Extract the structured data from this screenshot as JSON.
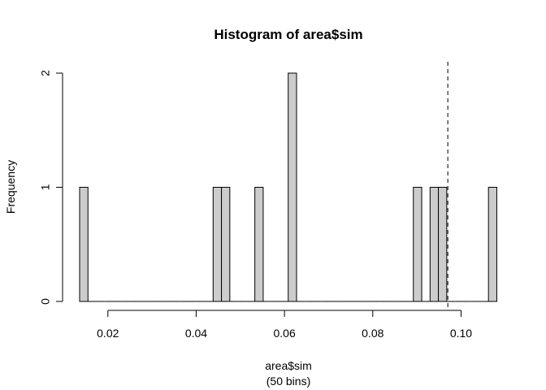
{
  "chart_data": {
    "type": "bar",
    "title": "Histogram of area$sim",
    "xlabel": "area$sim",
    "xlabel_sub": "(50 bins)",
    "ylabel": "Frequency",
    "xlim": [
      0.0136,
      0.1082
    ],
    "ylim": [
      0,
      2
    ],
    "x_ticks": [
      0.02,
      0.04,
      0.06,
      0.08,
      0.1
    ],
    "x_tick_labels": [
      "0.02",
      "0.04",
      "0.06",
      "0.08",
      "0.10"
    ],
    "y_ticks": [
      0,
      1,
      2
    ],
    "y_tick_labels": [
      "0",
      "1",
      "2"
    ],
    "bin_width": 0.00189,
    "bins_start": 0.0136,
    "n_bins": 50,
    "counts": [
      1,
      0,
      0,
      0,
      0,
      0,
      0,
      0,
      0,
      0,
      0,
      0,
      0,
      0,
      0,
      0,
      1,
      1,
      0,
      0,
      0,
      1,
      0,
      0,
      0,
      2,
      0,
      0,
      0,
      0,
      0,
      0,
      0,
      0,
      0,
      0,
      0,
      0,
      0,
      0,
      1,
      0,
      1,
      1,
      0,
      0,
      0,
      0,
      0,
      1
    ],
    "reference_line": {
      "x": 0.097,
      "style": "dashed"
    },
    "bar_fill": "#cccccc",
    "bar_stroke": "#000000",
    "grid": false,
    "legend": "none"
  }
}
